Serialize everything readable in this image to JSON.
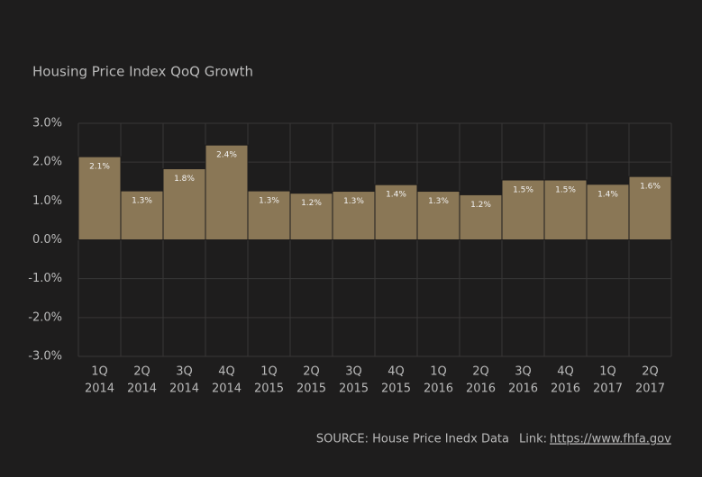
{
  "chart_data": {
    "type": "bar",
    "title": "Housing Price Index QoQ Growth",
    "categories": [
      [
        "1Q",
        "2014"
      ],
      [
        "2Q",
        "2014"
      ],
      [
        "3Q",
        "2014"
      ],
      [
        "4Q",
        "2014"
      ],
      [
        "1Q",
        "2015"
      ],
      [
        "2Q",
        "2015"
      ],
      [
        "3Q",
        "2015"
      ],
      [
        "4Q",
        "2015"
      ],
      [
        "1Q",
        "2016"
      ],
      [
        "2Q",
        "2016"
      ],
      [
        "3Q",
        "2016"
      ],
      [
        "4Q",
        "2016"
      ],
      [
        "1Q",
        "2017"
      ],
      [
        "2Q",
        "2017"
      ]
    ],
    "values": [
      2.14,
      1.26,
      1.83,
      2.44,
      1.26,
      1.2,
      1.25,
      1.42,
      1.25,
      1.16,
      1.54,
      1.54,
      1.43,
      1.63
    ],
    "value_labels": [
      "2.1%",
      "1.3%",
      "1.8%",
      "2.4%",
      "1.3%",
      "1.2%",
      "1.3%",
      "1.4%",
      "1.3%",
      "1.2%",
      "1.5%",
      "1.5%",
      "1.4%",
      "1.6%"
    ],
    "color": "#8a7756",
    "ylim": [
      -3,
      3
    ],
    "yticks": [
      {
        "value": -3,
        "label": "-3.0%"
      },
      {
        "value": -2,
        "label": "-2.0%"
      },
      {
        "value": -1,
        "label": "-1.0%"
      },
      {
        "value": 0,
        "label": "0.0%"
      },
      {
        "value": 1,
        "label": "1.0%"
      },
      {
        "value": 2,
        "label": "2.0%"
      },
      {
        "value": 3,
        "label": "3.0%"
      }
    ],
    "grid": true,
    "source": "SOURCE:  House Price Inedx Data",
    "link_label": "Link:",
    "link_url": "https://www.fhfa.gov"
  }
}
